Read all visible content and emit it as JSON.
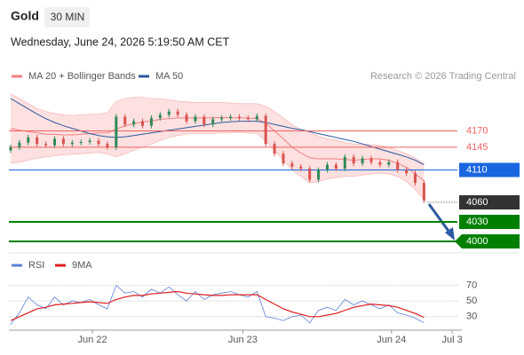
{
  "header": {
    "symbol": "Gold",
    "interval": "30 MIN",
    "datetime": "Wednesday, June 24, 2026 5:19:50 AM CET",
    "credit": "Research © 2026 Trading Central"
  },
  "chart_data": [
    {
      "type": "candlestick",
      "up_color": "#2e8b57",
      "down_color": "#d9534f",
      "xlim": [
        -0.2,
        51.3
      ],
      "ylim": [
        3989,
        4235
      ],
      "candles": {
        "open": [
          4140,
          4145,
          4152,
          4160,
          4150,
          4148,
          4158,
          4150,
          4152,
          4153,
          4155,
          4150,
          4145,
          4192,
          4180,
          4185,
          4178,
          4190,
          4195,
          4200,
          4195,
          4185,
          4192,
          4180,
          4188,
          4190,
          4192,
          4190,
          4188,
          4193,
          4150,
          4135,
          4120,
          4115,
          4112,
          4095,
          4110,
          4118,
          4112,
          4130,
          4120,
          4128,
          4122,
          4118,
          4122,
          4110,
          4105,
          4090
        ],
        "high": [
          4149,
          4156,
          4164,
          4164,
          4154,
          4162,
          4162,
          4156,
          4157,
          4159,
          4159,
          4154,
          4196,
          4196,
          4189,
          4189,
          4194,
          4199,
          4204,
          4204,
          4199,
          4196,
          4196,
          4192,
          4194,
          4196,
          4196,
          4194,
          4197,
          4197,
          4154,
          4139,
          4124,
          4119,
          4116,
          4114,
          4122,
          4122,
          4134,
          4134,
          4132,
          4132,
          4126,
          4126,
          4126,
          4114,
          4109,
          4094
        ],
        "low": [
          4136,
          4141,
          4148,
          4146,
          4144,
          4144,
          4146,
          4146,
          4148,
          4149,
          4146,
          4141,
          4141,
          4176,
          4176,
          4174,
          4174,
          4186,
          4191,
          4191,
          4181,
          4181,
          4176,
          4176,
          4184,
          4186,
          4186,
          4184,
          4184,
          4146,
          4131,
          4116,
          4111,
          4108,
          4091,
          4091,
          4106,
          4108,
          4108,
          4116,
          4116,
          4118,
          4114,
          4114,
          4106,
          4101,
          4086,
          4059
        ],
        "close": [
          4145,
          4152,
          4160,
          4150,
          4148,
          4158,
          4150,
          4152,
          4153,
          4155,
          4150,
          4145,
          4192,
          4180,
          4185,
          4178,
          4190,
          4195,
          4200,
          4195,
          4185,
          4192,
          4180,
          4188,
          4190,
          4192,
          4190,
          4188,
          4193,
          4150,
          4135,
          4120,
          4115,
          4112,
          4095,
          4110,
          4118,
          4112,
          4130,
          4120,
          4128,
          4122,
          4118,
          4122,
          4110,
          4105,
          4090,
          4063
        ]
      },
      "series": [
        {
          "name": "MA 20 + Bollinger Bands",
          "color": "#f08080",
          "band_color": "#fde0e0",
          "values": [
            4174,
            4171,
            4169,
            4167,
            4165,
            4165,
            4164,
            4164,
            4165,
            4166,
            4167,
            4167,
            4173,
            4178,
            4181,
            4184,
            4185,
            4188,
            4189,
            4190,
            4190,
            4190,
            4190,
            4190,
            4191,
            4190,
            4190,
            4190,
            4189,
            4182,
            4170,
            4158,
            4145,
            4136,
            4129,
            4127,
            4127,
            4127,
            4126,
            4125,
            4126,
            4127,
            4127,
            4125,
            4120,
            4114,
            4104,
            4093
          ],
          "upper": [
            4227,
            4220,
            4212,
            4205,
            4200,
            4197,
            4195,
            4194,
            4195,
            4196,
            4196,
            4198,
            4215,
            4220,
            4222,
            4222,
            4220,
            4220,
            4218,
            4216,
            4215,
            4214,
            4214,
            4214,
            4214,
            4213,
            4212,
            4212,
            4212,
            4208,
            4200,
            4190,
            4180,
            4172,
            4168,
            4162,
            4158,
            4156,
            4152,
            4150,
            4150,
            4149,
            4148,
            4145,
            4140,
            4135,
            4128,
            4120
          ],
          "lower": [
            4120,
            4122,
            4125,
            4128,
            4130,
            4132,
            4133,
            4134,
            4135,
            4136,
            4137,
            4135,
            4130,
            4135,
            4140,
            4145,
            4150,
            4155,
            4160,
            4163,
            4165,
            4166,
            4166,
            4166,
            4167,
            4167,
            4168,
            4167,
            4166,
            4155,
            4140,
            4125,
            4110,
            4100,
            4090,
            4092,
            4096,
            4098,
            4100,
            4100,
            4102,
            4104,
            4105,
            4104,
            4100,
            4092,
            4080,
            4065
          ]
        },
        {
          "name": "MA 50",
          "color": "#2c5aa0",
          "values": [
            4220,
            4212,
            4204,
            4196,
            4189,
            4183,
            4178,
            4174,
            4170,
            4166,
            4163,
            4161,
            4160,
            4161,
            4163,
            4165,
            4167,
            4169,
            4171,
            4173,
            4175,
            4177,
            4179,
            4181,
            4183,
            4184,
            4185,
            4185,
            4185,
            4183,
            4180,
            4177,
            4174,
            4172,
            4169,
            4166,
            4163,
            4160,
            4157,
            4154,
            4150,
            4146,
            4142,
            4138,
            4134,
            4130,
            4125,
            4118
          ]
        }
      ],
      "levels": [
        {
          "value": 4170,
          "color": "#f06060",
          "line": "solid",
          "label_style": "text"
        },
        {
          "value": 4145,
          "color": "#f06060",
          "line": "solid",
          "label_style": "text"
        },
        {
          "value": 4110,
          "color": "#1a66e0",
          "line": "solid",
          "label_style": "box"
        },
        {
          "value": 4060,
          "color": "#333333",
          "line": "dotted",
          "label_style": "box"
        },
        {
          "value": 4030,
          "color": "#008000",
          "line": "thick",
          "label_style": "box"
        },
        {
          "value": 4000,
          "color": "#008000",
          "line": "thick",
          "label_style": "arrow-box"
        }
      ]
    },
    {
      "type": "line",
      "xlim": [
        -0.2,
        51.3
      ],
      "ylim": [
        15,
        83
      ],
      "yticks": [
        70,
        50,
        30
      ],
      "grid": true,
      "xticks": [
        {
          "value": 9.3,
          "label": "Jun 22"
        },
        {
          "value": 26.4,
          "label": "Jun 23"
        },
        {
          "value": 43.3,
          "label": "Jun 24"
        },
        {
          "value": 50.2,
          "label": "Jul 3"
        }
      ],
      "series": [
        {
          "name": "RSI",
          "color": "#5b7fd8",
          "values": [
            20,
            35,
            55,
            45,
            40,
            55,
            45,
            50,
            48,
            52,
            45,
            40,
            70,
            60,
            62,
            55,
            65,
            60,
            68,
            58,
            50,
            62,
            52,
            58,
            60,
            62,
            58,
            55,
            62,
            30,
            28,
            25,
            30,
            32,
            22,
            38,
            42,
            38,
            52,
            45,
            50,
            45,
            40,
            45,
            35,
            32,
            28,
            22
          ]
        },
        {
          "name": "9MA",
          "color": "#e02020",
          "values": [
            25,
            30,
            35,
            40,
            42,
            45,
            46,
            47,
            48,
            49,
            48,
            47,
            52,
            55,
            57,
            57,
            59,
            60,
            61,
            62,
            60,
            59,
            58,
            57,
            57,
            58,
            58,
            58,
            58,
            52,
            46,
            40,
            36,
            33,
            30,
            30,
            32,
            34,
            38,
            42,
            44,
            46,
            45,
            44,
            42,
            38,
            34,
            29
          ]
        }
      ]
    }
  ]
}
